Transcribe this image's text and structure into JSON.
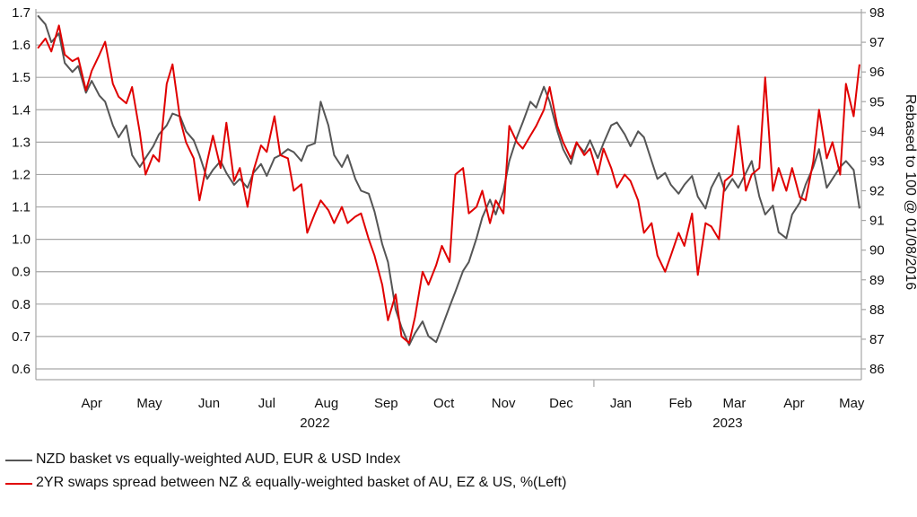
{
  "chart_data": {
    "type": "line",
    "title": "",
    "x_axis": {
      "month_labels": [
        "Apr",
        "May",
        "Jun",
        "Jul",
        "Aug",
        "Sep",
        "Oct",
        "Nov",
        "Dec",
        "Jan",
        "Feb",
        "Mar",
        "Apr",
        "May"
      ],
      "year_labels": [
        "2022",
        "2023"
      ],
      "range": [
        "2022-03-17",
        "2023-05-20"
      ]
    },
    "y_left": {
      "range": [
        0.6,
        1.7
      ],
      "ticks": [
        "0.6",
        "0.7",
        "0.8",
        "0.9",
        "1.0",
        "1.1",
        "1.2",
        "1.3",
        "1.4",
        "1.5",
        "1.6",
        "1.7"
      ]
    },
    "y_right": {
      "label": "Rebased to 100 @ 01/08/2016",
      "range": [
        86,
        98
      ],
      "ticks": [
        "86",
        "87",
        "88",
        "89",
        "90",
        "91",
        "92",
        "93",
        "94",
        "95",
        "96",
        "97",
        "98"
      ]
    },
    "grid": "horizontal",
    "legend_position": "bottom-left",
    "series": [
      {
        "name": "NZD basket vs equally-weighted AUD, EUR & USD Index",
        "color": "#555555",
        "axis": "right",
        "points": [
          [
            "2022-03-18",
            97.9
          ],
          [
            "2022-03-22",
            97.6
          ],
          [
            "2022-03-25",
            97.0
          ],
          [
            "2022-03-29",
            97.3
          ],
          [
            "2022-04-01",
            96.3
          ],
          [
            "2022-04-05",
            96.0
          ],
          [
            "2022-04-08",
            96.2
          ],
          [
            "2022-04-12",
            95.3
          ],
          [
            "2022-04-15",
            95.7
          ],
          [
            "2022-04-19",
            95.2
          ],
          [
            "2022-04-22",
            95.0
          ],
          [
            "2022-04-26",
            94.2
          ],
          [
            "2022-04-29",
            93.8
          ],
          [
            "2022-05-03",
            94.2
          ],
          [
            "2022-05-06",
            93.2
          ],
          [
            "2022-05-10",
            92.8
          ],
          [
            "2022-05-13",
            93.1
          ],
          [
            "2022-05-17",
            93.5
          ],
          [
            "2022-05-20",
            93.9
          ],
          [
            "2022-05-24",
            94.2
          ],
          [
            "2022-05-27",
            94.6
          ],
          [
            "2022-05-31",
            94.5
          ],
          [
            "2022-06-03",
            94.0
          ],
          [
            "2022-06-07",
            93.7
          ],
          [
            "2022-06-10",
            93.2
          ],
          [
            "2022-06-14",
            92.4
          ],
          [
            "2022-06-17",
            92.7
          ],
          [
            "2022-06-21",
            93.0
          ],
          [
            "2022-06-24",
            92.6
          ],
          [
            "2022-06-28",
            92.2
          ],
          [
            "2022-07-01",
            92.4
          ],
          [
            "2022-07-05",
            92.1
          ],
          [
            "2022-07-08",
            92.6
          ],
          [
            "2022-07-12",
            92.9
          ],
          [
            "2022-07-15",
            92.5
          ],
          [
            "2022-07-19",
            93.1
          ],
          [
            "2022-07-22",
            93.2
          ],
          [
            "2022-07-26",
            93.4
          ],
          [
            "2022-07-29",
            93.3
          ],
          [
            "2022-08-02",
            93.0
          ],
          [
            "2022-08-05",
            93.5
          ],
          [
            "2022-08-09",
            93.6
          ],
          [
            "2022-08-12",
            95.0
          ],
          [
            "2022-08-16",
            94.2
          ],
          [
            "2022-08-19",
            93.2
          ],
          [
            "2022-08-23",
            92.8
          ],
          [
            "2022-08-26",
            93.2
          ],
          [
            "2022-08-30",
            92.4
          ],
          [
            "2022-09-02",
            92.0
          ],
          [
            "2022-09-06",
            91.9
          ],
          [
            "2022-09-09",
            91.3
          ],
          [
            "2022-09-13",
            90.2
          ],
          [
            "2022-09-16",
            89.6
          ],
          [
            "2022-09-20",
            88.0
          ],
          [
            "2022-09-23",
            87.4
          ],
          [
            "2022-09-27",
            86.8
          ],
          [
            "2022-09-30",
            87.2
          ],
          [
            "2022-10-04",
            87.6
          ],
          [
            "2022-10-07",
            87.1
          ],
          [
            "2022-10-11",
            86.9
          ],
          [
            "2022-10-14",
            87.4
          ],
          [
            "2022-10-18",
            88.1
          ],
          [
            "2022-10-21",
            88.6
          ],
          [
            "2022-10-25",
            89.3
          ],
          [
            "2022-10-28",
            89.6
          ],
          [
            "2022-11-01",
            90.4
          ],
          [
            "2022-11-04",
            91.1
          ],
          [
            "2022-11-08",
            91.7
          ],
          [
            "2022-11-11",
            91.2
          ],
          [
            "2022-11-15",
            92.0
          ],
          [
            "2022-11-18",
            93.0
          ],
          [
            "2022-11-22",
            93.8
          ],
          [
            "2022-11-25",
            94.3
          ],
          [
            "2022-11-29",
            95.0
          ],
          [
            "2022-12-02",
            94.8
          ],
          [
            "2022-12-06",
            95.5
          ],
          [
            "2022-12-09",
            95.0
          ],
          [
            "2022-12-13",
            94.0
          ],
          [
            "2022-12-16",
            93.4
          ],
          [
            "2022-12-20",
            92.9
          ],
          [
            "2022-12-23",
            93.6
          ],
          [
            "2022-12-27",
            93.3
          ],
          [
            "2022-12-30",
            93.7
          ],
          [
            "2023-01-03",
            93.1
          ],
          [
            "2023-01-06",
            93.6
          ],
          [
            "2023-01-10",
            94.2
          ],
          [
            "2023-01-13",
            94.3
          ],
          [
            "2023-01-17",
            93.9
          ],
          [
            "2023-01-20",
            93.5
          ],
          [
            "2023-01-24",
            94.0
          ],
          [
            "2023-01-27",
            93.8
          ],
          [
            "2023-01-31",
            93.0
          ],
          [
            "2023-02-03",
            92.4
          ],
          [
            "2023-02-07",
            92.6
          ],
          [
            "2023-02-10",
            92.2
          ],
          [
            "2023-02-14",
            91.9
          ],
          [
            "2023-02-17",
            92.2
          ],
          [
            "2023-02-21",
            92.5
          ],
          [
            "2023-02-24",
            91.8
          ],
          [
            "2023-02-28",
            91.4
          ],
          [
            "2023-03-03",
            92.1
          ],
          [
            "2023-03-07",
            92.6
          ],
          [
            "2023-03-10",
            92.0
          ],
          [
            "2023-03-14",
            92.4
          ],
          [
            "2023-03-17",
            92.1
          ],
          [
            "2023-03-21",
            92.6
          ],
          [
            "2023-03-24",
            93.0
          ],
          [
            "2023-03-28",
            91.8
          ],
          [
            "2023-03-31",
            91.2
          ],
          [
            "2023-04-04",
            91.5
          ],
          [
            "2023-04-07",
            90.6
          ],
          [
            "2023-04-11",
            90.4
          ],
          [
            "2023-04-14",
            91.2
          ],
          [
            "2023-04-18",
            91.6
          ],
          [
            "2023-04-21",
            92.2
          ],
          [
            "2023-04-25",
            92.8
          ],
          [
            "2023-04-28",
            93.4
          ],
          [
            "2023-05-02",
            92.1
          ],
          [
            "2023-05-05",
            92.4
          ],
          [
            "2023-05-09",
            92.8
          ],
          [
            "2023-05-12",
            93.0
          ],
          [
            "2023-05-16",
            92.7
          ],
          [
            "2023-05-19",
            91.4
          ]
        ]
      },
      {
        "name": "2YR swaps spread between NZ & equally-weighted basket of AU, EZ & US, %(Left)",
        "color": "#e00000",
        "axis": "left",
        "points": [
          [
            "2022-03-18",
            1.59
          ],
          [
            "2022-03-22",
            1.62
          ],
          [
            "2022-03-25",
            1.58
          ],
          [
            "2022-03-29",
            1.66
          ],
          [
            "2022-04-01",
            1.57
          ],
          [
            "2022-04-05",
            1.55
          ],
          [
            "2022-04-08",
            1.56
          ],
          [
            "2022-04-12",
            1.46
          ],
          [
            "2022-04-15",
            1.52
          ],
          [
            "2022-04-19",
            1.57
          ],
          [
            "2022-04-22",
            1.61
          ],
          [
            "2022-04-26",
            1.48
          ],
          [
            "2022-04-29",
            1.44
          ],
          [
            "2022-05-03",
            1.42
          ],
          [
            "2022-05-06",
            1.47
          ],
          [
            "2022-05-10",
            1.33
          ],
          [
            "2022-05-13",
            1.2
          ],
          [
            "2022-05-17",
            1.26
          ],
          [
            "2022-05-20",
            1.24
          ],
          [
            "2022-05-24",
            1.48
          ],
          [
            "2022-05-27",
            1.54
          ],
          [
            "2022-05-31",
            1.37
          ],
          [
            "2022-06-03",
            1.3
          ],
          [
            "2022-06-07",
            1.25
          ],
          [
            "2022-06-10",
            1.12
          ],
          [
            "2022-06-14",
            1.24
          ],
          [
            "2022-06-17",
            1.32
          ],
          [
            "2022-06-21",
            1.22
          ],
          [
            "2022-06-24",
            1.36
          ],
          [
            "2022-06-28",
            1.18
          ],
          [
            "2022-07-01",
            1.22
          ],
          [
            "2022-07-05",
            1.1
          ],
          [
            "2022-07-08",
            1.21
          ],
          [
            "2022-07-12",
            1.29
          ],
          [
            "2022-07-15",
            1.27
          ],
          [
            "2022-07-19",
            1.38
          ],
          [
            "2022-07-22",
            1.26
          ],
          [
            "2022-07-26",
            1.25
          ],
          [
            "2022-07-29",
            1.15
          ],
          [
            "2022-08-02",
            1.17
          ],
          [
            "2022-08-05",
            1.02
          ],
          [
            "2022-08-09",
            1.08
          ],
          [
            "2022-08-12",
            1.12
          ],
          [
            "2022-08-16",
            1.09
          ],
          [
            "2022-08-19",
            1.05
          ],
          [
            "2022-08-23",
            1.1
          ],
          [
            "2022-08-26",
            1.05
          ],
          [
            "2022-08-30",
            1.07
          ],
          [
            "2022-09-02",
            1.08
          ],
          [
            "2022-09-06",
            1.0
          ],
          [
            "2022-09-09",
            0.95
          ],
          [
            "2022-09-13",
            0.86
          ],
          [
            "2022-09-16",
            0.75
          ],
          [
            "2022-09-20",
            0.83
          ],
          [
            "2022-09-23",
            0.7
          ],
          [
            "2022-09-27",
            0.68
          ],
          [
            "2022-09-30",
            0.76
          ],
          [
            "2022-10-04",
            0.9
          ],
          [
            "2022-10-07",
            0.86
          ],
          [
            "2022-10-11",
            0.92
          ],
          [
            "2022-10-14",
            0.98
          ],
          [
            "2022-10-18",
            0.93
          ],
          [
            "2022-10-21",
            1.2
          ],
          [
            "2022-10-25",
            1.22
          ],
          [
            "2022-10-28",
            1.08
          ],
          [
            "2022-11-01",
            1.1
          ],
          [
            "2022-11-04",
            1.15
          ],
          [
            "2022-11-08",
            1.05
          ],
          [
            "2022-11-11",
            1.12
          ],
          [
            "2022-11-15",
            1.08
          ],
          [
            "2022-11-18",
            1.35
          ],
          [
            "2022-11-22",
            1.3
          ],
          [
            "2022-11-25",
            1.28
          ],
          [
            "2022-11-29",
            1.32
          ],
          [
            "2022-12-02",
            1.35
          ],
          [
            "2022-12-06",
            1.4
          ],
          [
            "2022-12-09",
            1.47
          ],
          [
            "2022-12-13",
            1.35
          ],
          [
            "2022-12-16",
            1.3
          ],
          [
            "2022-12-20",
            1.25
          ],
          [
            "2022-12-23",
            1.3
          ],
          [
            "2022-12-27",
            1.26
          ],
          [
            "2022-12-30",
            1.28
          ],
          [
            "2023-01-03",
            1.2
          ],
          [
            "2023-01-06",
            1.28
          ],
          [
            "2023-01-10",
            1.22
          ],
          [
            "2023-01-13",
            1.16
          ],
          [
            "2023-01-17",
            1.2
          ],
          [
            "2023-01-20",
            1.18
          ],
          [
            "2023-01-24",
            1.12
          ],
          [
            "2023-01-27",
            1.02
          ],
          [
            "2023-01-31",
            1.05
          ],
          [
            "2023-02-03",
            0.95
          ],
          [
            "2023-02-07",
            0.9
          ],
          [
            "2023-02-10",
            0.95
          ],
          [
            "2023-02-14",
            1.02
          ],
          [
            "2023-02-17",
            0.98
          ],
          [
            "2023-02-21",
            1.08
          ],
          [
            "2023-02-24",
            0.89
          ],
          [
            "2023-02-28",
            1.05
          ],
          [
            "2023-03-03",
            1.04
          ],
          [
            "2023-03-07",
            1.0
          ],
          [
            "2023-03-10",
            1.18
          ],
          [
            "2023-03-14",
            1.2
          ],
          [
            "2023-03-17",
            1.35
          ],
          [
            "2023-03-21",
            1.15
          ],
          [
            "2023-03-24",
            1.2
          ],
          [
            "2023-03-28",
            1.22
          ],
          [
            "2023-03-31",
            1.5
          ],
          [
            "2023-04-04",
            1.15
          ],
          [
            "2023-04-07",
            1.22
          ],
          [
            "2023-04-11",
            1.15
          ],
          [
            "2023-04-14",
            1.22
          ],
          [
            "2023-04-18",
            1.13
          ],
          [
            "2023-04-21",
            1.12
          ],
          [
            "2023-04-25",
            1.24
          ],
          [
            "2023-04-28",
            1.4
          ],
          [
            "2023-05-02",
            1.25
          ],
          [
            "2023-05-05",
            1.3
          ],
          [
            "2023-05-09",
            1.2
          ],
          [
            "2023-05-12",
            1.48
          ],
          [
            "2023-05-16",
            1.38
          ],
          [
            "2023-05-19",
            1.54
          ]
        ]
      }
    ]
  }
}
